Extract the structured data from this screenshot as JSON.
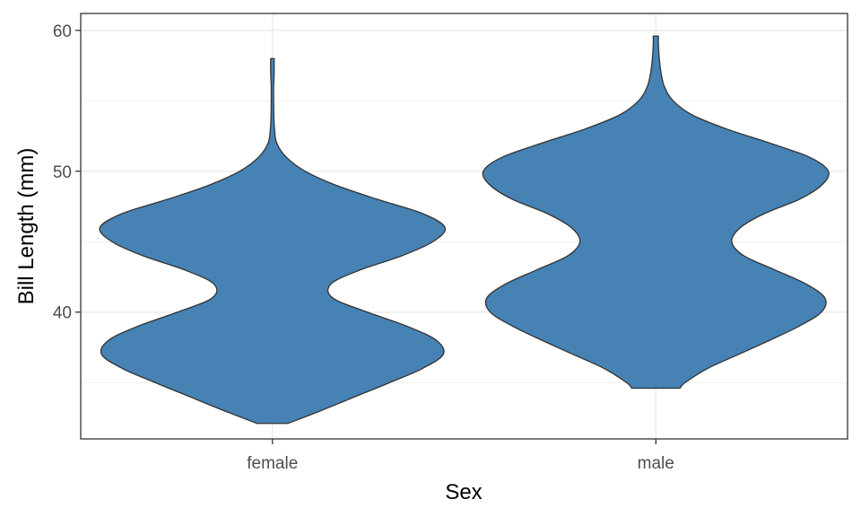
{
  "chart_data": {
    "type": "violin",
    "title": "",
    "xlabel": "Sex",
    "ylabel": "Bill Length (mm)",
    "categories": [
      "female",
      "male"
    ],
    "ylim": [
      31,
      61.2
    ],
    "yticks": [
      40,
      50,
      60
    ],
    "y_minor_ticks": [
      35,
      45,
      55
    ],
    "grid": true,
    "fill_color": "#4682b4",
    "outline_color": "#333333",
    "violins": [
      {
        "category": "female",
        "range": [
          32.1,
          58.0
        ],
        "density_profile": [
          [
            32.1,
            0.09
          ],
          [
            33.0,
            0.28
          ],
          [
            34.0,
            0.48
          ],
          [
            35.0,
            0.68
          ],
          [
            36.0,
            0.87
          ],
          [
            37.0,
            0.99
          ],
          [
            38.0,
            0.95
          ],
          [
            39.0,
            0.78
          ],
          [
            40.0,
            0.55
          ],
          [
            41.0,
            0.35
          ],
          [
            42.0,
            0.34
          ],
          [
            43.0,
            0.51
          ],
          [
            44.0,
            0.75
          ],
          [
            45.0,
            0.93
          ],
          [
            46.0,
            1.0
          ],
          [
            47.0,
            0.87
          ],
          [
            48.0,
            0.61
          ],
          [
            49.0,
            0.37
          ],
          [
            50.0,
            0.19
          ],
          [
            51.0,
            0.08
          ],
          [
            52.0,
            0.025
          ],
          [
            53.0,
            0.012
          ],
          [
            54.0,
            0.008
          ],
          [
            55.0,
            0.007
          ],
          [
            56.0,
            0.007
          ],
          [
            57.0,
            0.01
          ],
          [
            58.0,
            0.01
          ]
        ]
      },
      {
        "category": "male",
        "range": [
          34.6,
          59.6
        ],
        "density_profile": [
          [
            34.6,
            0.14
          ],
          [
            35.0,
            0.17
          ],
          [
            36.0,
            0.3
          ],
          [
            37.0,
            0.48
          ],
          [
            38.0,
            0.66
          ],
          [
            39.0,
            0.83
          ],
          [
            40.0,
            0.96
          ],
          [
            41.0,
            0.98
          ],
          [
            42.0,
            0.87
          ],
          [
            43.0,
            0.69
          ],
          [
            44.0,
            0.51
          ],
          [
            45.0,
            0.44
          ],
          [
            46.0,
            0.49
          ],
          [
            47.0,
            0.63
          ],
          [
            48.0,
            0.83
          ],
          [
            49.0,
            0.96
          ],
          [
            50.0,
            1.0
          ],
          [
            51.0,
            0.89
          ],
          [
            52.0,
            0.66
          ],
          [
            53.0,
            0.41
          ],
          [
            54.0,
            0.21
          ],
          [
            55.0,
            0.1
          ],
          [
            56.0,
            0.05
          ],
          [
            57.0,
            0.03
          ],
          [
            58.0,
            0.02
          ],
          [
            59.0,
            0.015
          ],
          [
            59.6,
            0.015
          ]
        ]
      }
    ]
  }
}
